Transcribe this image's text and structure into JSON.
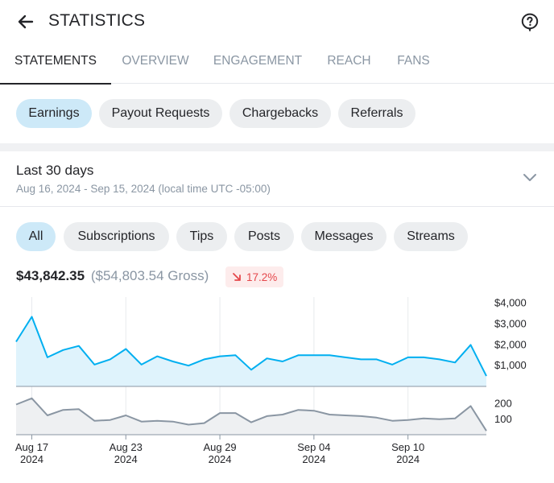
{
  "header": {
    "title": "STATISTICS",
    "back_icon": "arrow-left-icon",
    "help_icon": "question-circle-icon"
  },
  "tabs": [
    {
      "label": "STATEMENTS",
      "active": true
    },
    {
      "label": "OVERVIEW",
      "active": false
    },
    {
      "label": "ENGAGEMENT",
      "active": false
    },
    {
      "label": "REACH",
      "active": false
    },
    {
      "label": "FANS",
      "active": false
    }
  ],
  "statement_types": [
    {
      "label": "Earnings",
      "active": true
    },
    {
      "label": "Payout Requests",
      "active": false
    },
    {
      "label": "Chargebacks",
      "active": false
    },
    {
      "label": "Referrals",
      "active": false
    }
  ],
  "date_range": {
    "title": "Last 30 days",
    "subtitle": "Aug 16, 2024 - Sep 15, 2024 (local time UTC -05:00)",
    "chevron_icon": "chevron-down-icon"
  },
  "filters": [
    {
      "label": "All",
      "active": true
    },
    {
      "label": "Subscriptions",
      "active": false
    },
    {
      "label": "Tips",
      "active": false
    },
    {
      "label": "Posts",
      "active": false
    },
    {
      "label": "Messages",
      "active": false
    },
    {
      "label": "Streams",
      "active": false
    }
  ],
  "summary": {
    "net": "$43,842.35",
    "gross": "($54,803.54 Gross)",
    "delta": "17.2%",
    "delta_icon": "trend-down-icon"
  },
  "colors": {
    "accent": "#00aff0",
    "accent_fill": "#dff3fc",
    "active_pill": "#cde9f8",
    "secondary_line": "#8a96a3",
    "secondary_fill": "#eef0f2",
    "negative": "#e5474b",
    "negative_bg": "#fdecec"
  },
  "chart_data": [
    {
      "type": "area",
      "title": "",
      "x": [
        "Aug 16",
        "Aug 17",
        "Aug 18",
        "Aug 19",
        "Aug 20",
        "Aug 21",
        "Aug 22",
        "Aug 23",
        "Aug 24",
        "Aug 25",
        "Aug 26",
        "Aug 27",
        "Aug 28",
        "Aug 29",
        "Aug 30",
        "Aug 31",
        "Sep 01",
        "Sep 02",
        "Sep 03",
        "Sep 04",
        "Sep 05",
        "Sep 06",
        "Sep 07",
        "Sep 08",
        "Sep 09",
        "Sep 10",
        "Sep 11",
        "Sep 12",
        "Sep 13",
        "Sep 14",
        "Sep 15"
      ],
      "x_ticks": [
        {
          "date": "Aug 17",
          "year": "2024"
        },
        {
          "date": "Aug 23",
          "year": "2024"
        },
        {
          "date": "Aug 29",
          "year": "2024"
        },
        {
          "date": "Sep 04",
          "year": "2024"
        },
        {
          "date": "Sep 10",
          "year": "2024"
        }
      ],
      "series": [
        {
          "values": [
            2150,
            3350,
            1400,
            1750,
            1950,
            1050,
            1300,
            1800,
            1050,
            1450,
            1200,
            1000,
            1300,
            1450,
            1500,
            800,
            1350,
            1200,
            1500,
            1500,
            1500,
            1400,
            1300,
            1300,
            1050,
            1400,
            1400,
            1300,
            1150,
            2000,
            500
          ]
        }
      ],
      "y_ticks": [
        "$4,000",
        "$3,000",
        "$2,000",
        "$1,000"
      ],
      "y_tick_values": [
        4000,
        3000,
        2000,
        1000
      ],
      "ylim": [
        0,
        4300
      ],
      "grid": "vertical"
    },
    {
      "type": "area",
      "title": "",
      "series": [
        {
          "values": [
            195,
            235,
            125,
            160,
            165,
            90,
            95,
            125,
            85,
            90,
            85,
            65,
            75,
            140,
            140,
            80,
            120,
            130,
            160,
            155,
            130,
            125,
            120,
            110,
            90,
            95,
            105,
            100,
            105,
            185,
            25
          ]
        }
      ],
      "y_ticks": [
        "200",
        "100"
      ],
      "y_tick_values": [
        200,
        100
      ],
      "ylim": [
        0,
        260
      ],
      "grid": "vertical"
    }
  ]
}
